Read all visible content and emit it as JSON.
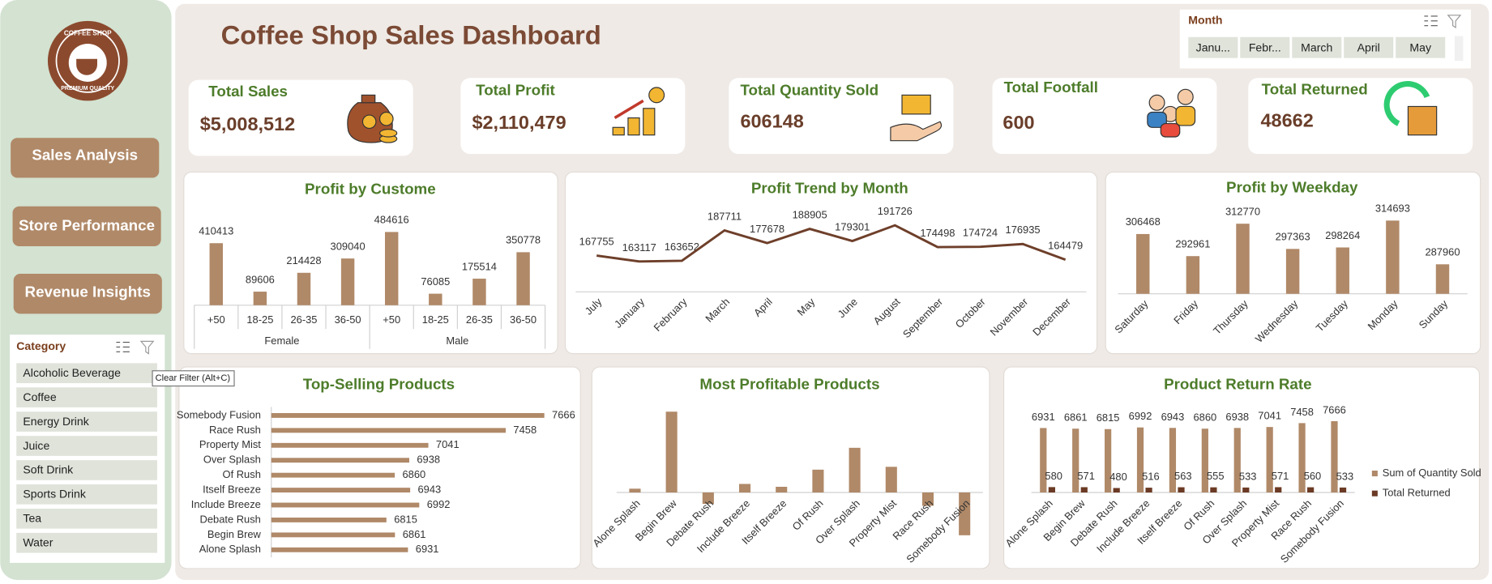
{
  "logo": {
    "top": "COFFEE SHOP",
    "bottom": "PREMIUM QUALITY"
  },
  "navigation": [
    "Sales Analysis",
    "Store Performance",
    "Revenue Insights"
  ],
  "category_slicer": {
    "title": "Category",
    "items": [
      "Alcoholic Beverage",
      "Coffee",
      "Energy Drink",
      "Juice",
      "Soft Drink",
      "Sports Drink",
      "Tea",
      "Water"
    ]
  },
  "tooltip": "Clear Filter (Alt+C)",
  "title": "Coffee Shop Sales Dashboard",
  "month_slicer": {
    "title": "Month",
    "items": [
      "Janu...",
      "Febr...",
      "March",
      "April",
      "May"
    ]
  },
  "kpis": [
    {
      "title": "Total Sales",
      "value": "$5,008,512"
    },
    {
      "title": "Total Profit",
      "value": "$2,110,479"
    },
    {
      "title": "Total Quantity Sold",
      "value": "606148"
    },
    {
      "title": "Total Footfall",
      "value": "600"
    },
    {
      "title": "Total Returned",
      "value": "48662"
    }
  ],
  "chart_data": [
    {
      "type": "bar",
      "title": "Profit by Custome",
      "categories": [
        "+50",
        "18-25",
        "26-35",
        "36-50",
        "+50",
        "18-25",
        "26-35",
        "36-50"
      ],
      "groups": [
        "Female",
        "Male"
      ],
      "values": [
        410413,
        89606,
        214428,
        309040,
        484616,
        76085,
        175514,
        350778
      ],
      "color": "#b08968",
      "data_labels": true
    },
    {
      "type": "line",
      "title": "Profit Trend by Month",
      "categories": [
        "July",
        "January",
        "February",
        "March",
        "April",
        "May",
        "June",
        "August",
        "September",
        "October",
        "November",
        "December"
      ],
      "values": [
        167755,
        163117,
        163652,
        187711,
        177678,
        188905,
        179301,
        191726,
        174498,
        174724,
        176935,
        164479
      ],
      "color": "#6e3f2a",
      "data_labels": true
    },
    {
      "type": "bar",
      "title": "Profit by Weekday",
      "categories": [
        "Saturday",
        "Friday",
        "Thursday",
        "Wednesday",
        "Tuesday",
        "Monday",
        "Sunday"
      ],
      "values": [
        306468,
        292961,
        312770,
        297363,
        298264,
        314693,
        287960
      ],
      "color": "#b08968",
      "data_labels": true
    },
    {
      "type": "hbar",
      "title": "Top-Selling Products",
      "categories": [
        "Somebody Fusion",
        "Race Rush",
        "Property Mist",
        "Over Splash",
        "Of Rush",
        "Itself Breeze",
        "Include Breeze",
        "Debate Rush",
        "Begin Brew",
        "Alone Splash"
      ],
      "values": [
        7666,
        7458,
        7041,
        6938,
        6860,
        6943,
        6992,
        6815,
        6861,
        6931
      ],
      "color": "#b08968",
      "data_labels": true
    },
    {
      "type": "bar",
      "title": "Most Profitable Products",
      "categories": [
        "Alone Splash",
        "Begin Brew",
        "Debate Rush",
        "Include Breeze",
        "Itself Breeze",
        "Of Rush",
        "Over Splash",
        "Property Mist",
        "Race Rush",
        "Somebody Fusion"
      ],
      "values": [
        4,
        85,
        -12,
        9,
        6,
        24,
        47,
        27,
        -14,
        -45
      ],
      "color": "#b08968",
      "data_labels": false
    },
    {
      "type": "grouped_bar",
      "title": "Product Return Rate",
      "categories": [
        "Alone Splash",
        "Begin Brew",
        "Debate Rush",
        "Include Breeze",
        "Itself Breeze",
        "Of Rush",
        "Over Splash",
        "Property Mist",
        "Race Rush",
        "Somebody Fusion"
      ],
      "series": [
        {
          "name": "Sum of Quantity Sold",
          "color": "#b08968",
          "values": [
            6931,
            6861,
            6815,
            6992,
            6943,
            6860,
            6938,
            7041,
            7458,
            7666
          ]
        },
        {
          "name": "Total Returned",
          "color": "#6b3a24",
          "values": [
            580,
            571,
            480,
            516,
            563,
            555,
            533,
            571,
            560,
            533
          ]
        }
      ],
      "legend": "right",
      "data_labels": true
    }
  ]
}
